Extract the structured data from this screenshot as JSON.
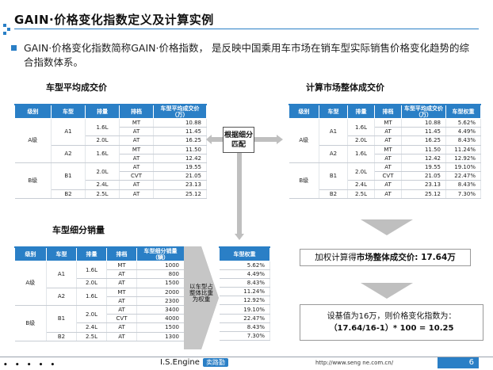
{
  "title": "GAIN·价格变化指数定义及计算实例",
  "intro": "GAIN·价格变化指数简称GAIN·价格指数， 是反映中国乘用车市场在销车型实际销售价格变化趋势的综合指数体系。",
  "sections": {
    "avg_price": "车型平均成交价",
    "market_price": "计算市场整体成交价",
    "segment_sales": "车型细分销量"
  },
  "match_label": "根据细分匹配",
  "weight_label": "以车型占整体比重为权重",
  "table_avg": {
    "headers": [
      "级别",
      "车型",
      "排量",
      "排档",
      "车型平均成交价（万）"
    ],
    "rows": [
      {
        "level": "A级",
        "model": "A1",
        "disp": "1.6L",
        "gear": "MT",
        "value": "10.88"
      },
      {
        "level": "",
        "model": "",
        "disp": "",
        "gear": "AT",
        "value": "11.45"
      },
      {
        "level": "",
        "model": "",
        "disp": "2.0L",
        "gear": "AT",
        "value": "16.25"
      },
      {
        "level": "",
        "model": "A2",
        "disp": "1.6L",
        "gear": "MT",
        "value": "11.50"
      },
      {
        "level": "",
        "model": "",
        "disp": "",
        "gear": "AT",
        "value": "12.42"
      },
      {
        "level": "B级",
        "model": "B1",
        "disp": "2.0L",
        "gear": "AT",
        "value": "19.55"
      },
      {
        "level": "",
        "model": "",
        "disp": "",
        "gear": "CVT",
        "value": "21.05"
      },
      {
        "level": "",
        "model": "",
        "disp": "2.4L",
        "gear": "AT",
        "value": "23.13"
      },
      {
        "level": "",
        "model": "B2",
        "disp": "2.5L",
        "gear": "AT",
        "value": "25.12"
      }
    ]
  },
  "table_market": {
    "headers": [
      "级别",
      "车型",
      "排量",
      "排档",
      "车型平均成交价（万）",
      "车型权重"
    ],
    "rows": [
      {
        "level": "A级",
        "model": "A1",
        "disp": "1.6L",
        "gear": "MT",
        "value": "10.88",
        "weight": "5.62%"
      },
      {
        "level": "",
        "model": "",
        "disp": "",
        "gear": "AT",
        "value": "11.45",
        "weight": "4.49%"
      },
      {
        "level": "",
        "model": "",
        "disp": "2.0L",
        "gear": "AT",
        "value": "16.25",
        "weight": "8.43%"
      },
      {
        "level": "",
        "model": "A2",
        "disp": "1.6L",
        "gear": "MT",
        "value": "11.50",
        "weight": "11.24%"
      },
      {
        "level": "",
        "model": "",
        "disp": "",
        "gear": "AT",
        "value": "12.42",
        "weight": "12.92%"
      },
      {
        "level": "B级",
        "model": "B1",
        "disp": "2.0L",
        "gear": "AT",
        "value": "19.55",
        "weight": "19.10%"
      },
      {
        "level": "",
        "model": "",
        "disp": "",
        "gear": "CVT",
        "value": "21.05",
        "weight": "22.47%"
      },
      {
        "level": "",
        "model": "",
        "disp": "2.4L",
        "gear": "AT",
        "value": "23.13",
        "weight": "8.43%"
      },
      {
        "level": "",
        "model": "B2",
        "disp": "2.5L",
        "gear": "AT",
        "value": "25.12",
        "weight": "7.30%"
      }
    ]
  },
  "table_sales": {
    "headers": [
      "级别",
      "车型",
      "排量",
      "排档",
      "车型细分销量（辆）"
    ],
    "rows": [
      {
        "level": "A级",
        "model": "A1",
        "disp": "1.6L",
        "gear": "MT",
        "value": "1000"
      },
      {
        "level": "",
        "model": "",
        "disp": "",
        "gear": "AT",
        "value": "800"
      },
      {
        "level": "",
        "model": "",
        "disp": "2.0L",
        "gear": "AT",
        "value": "1500"
      },
      {
        "level": "",
        "model": "A2",
        "disp": "1.6L",
        "gear": "MT",
        "value": "2000"
      },
      {
        "level": "",
        "model": "",
        "disp": "",
        "gear": "AT",
        "value": "2300"
      },
      {
        "level": "B级",
        "model": "B1",
        "disp": "2.0L",
        "gear": "AT",
        "value": "3400"
      },
      {
        "level": "",
        "model": "",
        "disp": "",
        "gear": "CVT",
        "value": "4000"
      },
      {
        "level": "",
        "model": "",
        "disp": "2.4L",
        "gear": "AT",
        "value": "1500"
      },
      {
        "level": "",
        "model": "B2",
        "disp": "2.5L",
        "gear": "AT",
        "value": "1300"
      }
    ]
  },
  "table_weight": {
    "header": "车型权重",
    "rows": [
      "5.62%",
      "4.49%",
      "8.43%",
      "11.24%",
      "12.92%",
      "19.10%",
      "22.47%",
      "8.43%",
      "7.30%"
    ]
  },
  "calc1": {
    "prefix": "加权计算得",
    "bold": "市场整体成交价: ",
    "value": "17.64万"
  },
  "calc2": {
    "line1": "设基值为16万，则价格变化指数为：",
    "line2": "（17.64/16-1）* 100 = 10.25"
  },
  "footer": {
    "dots": "• • • • •",
    "brand": "I.S.Engine",
    "brand_cn": "卖路勤",
    "url": "http://www.seng ne.com.cn/",
    "page": "6"
  },
  "colors": {
    "accent": "#2a7fc6",
    "arrow": "#bfbfbf"
  }
}
